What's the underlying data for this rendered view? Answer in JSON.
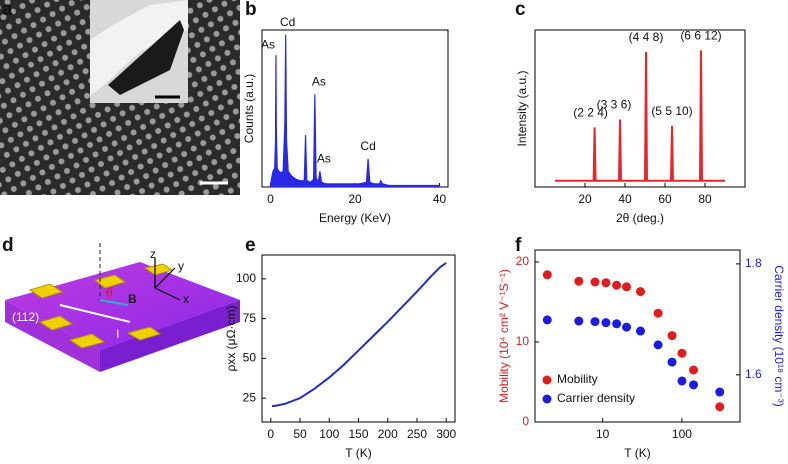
{
  "panel_labels": [
    "a",
    "b",
    "c",
    "d",
    "e",
    "f"
  ],
  "diagram_d": {
    "axis_z": "z",
    "axis_y": "y",
    "axis_x": "x",
    "angle": "θ",
    "field": "B",
    "surface": "(112)",
    "current": "I"
  },
  "chart_data": [
    {
      "type": "area",
      "xlabel": "Energy (KeV)",
      "ylabel": "Counts (a.u.)",
      "color": "#2a2ae6",
      "x": [
        0,
        0.3,
        0.6,
        1.0,
        1.2,
        1.3,
        1.4,
        1.6,
        2.0,
        2.6,
        3.0,
        3.4,
        3.6,
        3.8,
        4.2,
        5,
        6,
        7,
        8.0,
        8.3,
        8.6,
        9.5,
        10.2,
        10.5,
        10.8,
        11.3,
        11.7,
        12.1,
        13,
        15,
        18,
        21,
        22.7,
        23.1,
        23.5,
        24.5,
        25.8,
        26.1,
        26.5,
        28,
        32,
        36,
        40
      ],
      "values": [
        0.01,
        0.06,
        0.1,
        0.12,
        0.3,
        0.84,
        0.35,
        0.12,
        0.1,
        0.09,
        0.1,
        0.4,
        0.97,
        0.3,
        0.1,
        0.07,
        0.05,
        0.04,
        0.04,
        0.33,
        0.04,
        0.03,
        0.05,
        0.59,
        0.06,
        0.03,
        0.1,
        0.03,
        0.02,
        0.02,
        0.02,
        0.02,
        0.03,
        0.18,
        0.03,
        0.02,
        0.02,
        0.04,
        0.02,
        0.01,
        0.01,
        0.01,
        0.01
      ],
      "xlim": [
        -2,
        42
      ],
      "xticks": [
        0,
        20,
        40
      ],
      "ylim": [
        0,
        1
      ],
      "annotations": [
        "As",
        "Cd",
        "As",
        "As",
        "Cd"
      ]
    },
    {
      "type": "line",
      "xlabel": "2θ (deg.)",
      "ylabel": "Intensity (a.u.)",
      "color": "#e8262a",
      "x": [
        5,
        24.3,
        24.8,
        25.3,
        37,
        37.5,
        38,
        50,
        50.5,
        51,
        63,
        63.5,
        64,
        77.5,
        78,
        78.5,
        90
      ],
      "values": [
        0.04,
        0.04,
        0.38,
        0.04,
        0.04,
        0.43,
        0.04,
        0.04,
        0.86,
        0.04,
        0.04,
        0.39,
        0.04,
        0.04,
        0.87,
        0.04,
        0.04
      ],
      "xlim": [
        -5,
        100
      ],
      "xticks": [
        20,
        40,
        60,
        80
      ],
      "ylim": [
        0,
        1
      ],
      "annotations": [
        "(2 2 4)",
        "(3 3 6)",
        "(4 4 8)",
        "(5 5 10)",
        "(6 6 12)"
      ]
    },
    {
      "type": "line",
      "xlabel": "T (K)",
      "ylabel": "ρxx (μΩ·cm)",
      "color": "#1f2fcf",
      "x": [
        2,
        10,
        25,
        50,
        75,
        100,
        125,
        150,
        175,
        200,
        225,
        250,
        275,
        290,
        300
      ],
      "values": [
        20,
        20.3,
        21.5,
        25,
        31,
        38,
        46,
        55,
        64,
        73,
        82.5,
        92,
        102,
        107.5,
        110
      ],
      "xlim": [
        -15,
        315
      ],
      "xticks": [
        0,
        50,
        100,
        150,
        200,
        250,
        300
      ],
      "ylim": [
        10,
        115
      ],
      "yticks": [
        25,
        50,
        75,
        100
      ]
    },
    {
      "type": "scatter",
      "xlabel": "T (K)",
      "ylabel": "Mobility (10⁴ cm² V⁻¹S⁻¹)",
      "y2label": "Carrier density (10¹⁸ cm⁻³)",
      "log_x": true,
      "xlim": [
        1.4,
        540
      ],
      "xticks": [
        10,
        100
      ],
      "ylim": [
        0,
        21.5
      ],
      "yticks": [
        0,
        10,
        20
      ],
      "y2lim": [
        1.515,
        1.825
      ],
      "y2ticks": [
        1.6,
        1.8
      ],
      "x": [
        2,
        5,
        8,
        11,
        15,
        20,
        30,
        50,
        75,
        100,
        140,
        300
      ],
      "series": [
        {
          "name": "Mobility",
          "color": "#e01c1c",
          "values": [
            18.4,
            17.6,
            17.5,
            17.4,
            17.1,
            16.9,
            16.3,
            13.6,
            10.8,
            8.6,
            6.5,
            1.9
          ]
        },
        {
          "name": "Carrier density",
          "color": "#1c1ce0",
          "axis": "y2",
          "values": [
            1.699,
            1.697,
            1.696,
            1.694,
            1.692,
            1.686,
            1.679,
            1.654,
            1.623,
            1.589,
            1.582,
            1.569
          ]
        }
      ],
      "legend": "lower left"
    }
  ]
}
